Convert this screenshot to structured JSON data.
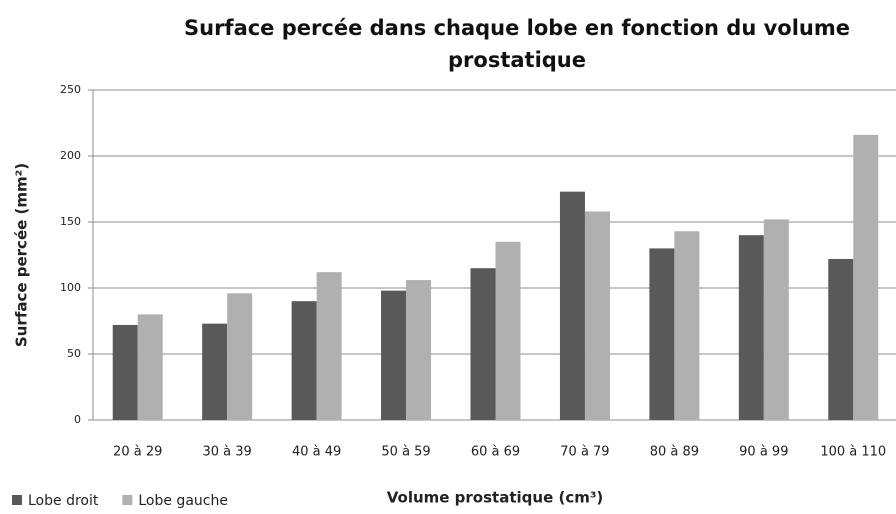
{
  "chart_data": {
    "type": "bar",
    "title": "Surface percée dans chaque lobe en fonction du volume prostatique",
    "x_label": "Volume prostatique (cm³)",
    "y_label": "Surface percée (mm²)",
    "categories": [
      "20 à 29",
      "30 à 39",
      "40 à 49",
      "50 à 59",
      "60 à 69",
      "70 à 79",
      "80 à 89",
      "90 à 99",
      "100 à 110"
    ],
    "series": [
      {
        "name": "Lobe droit",
        "color": "#595959",
        "values": [
          72,
          73,
          90,
          98,
          115,
          173,
          130,
          140,
          122
        ]
      },
      {
        "name": "Lobe gauche",
        "color": "#b0b0b0",
        "values": [
          80,
          96,
          112,
          106,
          135,
          158,
          143,
          152,
          216
        ]
      }
    ],
    "ylim": [
      0,
      250
    ],
    "yticks": [
      0,
      50,
      100,
      150,
      200,
      250
    ],
    "grid": true,
    "legend": "bottom-left"
  }
}
